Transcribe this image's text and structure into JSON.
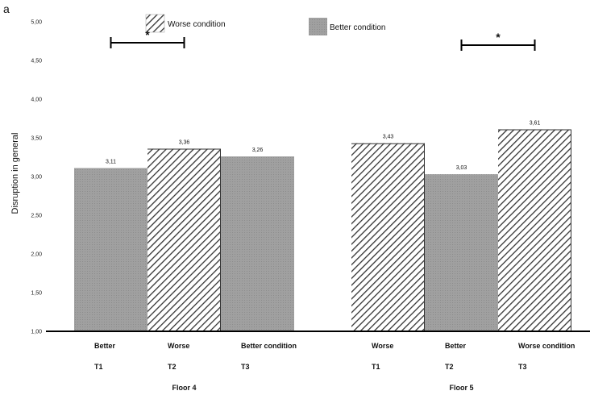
{
  "panel_label": "a",
  "legend": {
    "worse_label": "Worse condition",
    "better_label": "Better condition"
  },
  "colors": {
    "better_fill": "#a0a0a0",
    "hatch_stroke": "#333333",
    "axis": "#000000"
  },
  "chart_data": {
    "type": "bar",
    "title": "",
    "xlabel": "",
    "ylabel": "Disruption in general",
    "ylim": [
      1.0,
      5.0
    ],
    "yticks": [
      "1,00",
      "1,50",
      "2,00",
      "2,50",
      "3,00",
      "3,50",
      "4,00",
      "4,50",
      "5,00"
    ],
    "ytick_values": [
      1.0,
      1.5,
      2.0,
      2.5,
      3.0,
      3.5,
      4.0,
      4.5,
      5.0
    ],
    "grid": false,
    "legend_position": "top",
    "groups": [
      {
        "name": "Floor 4",
        "bars": [
          {
            "condition": "Better",
            "category": "Better",
            "time": "T1",
            "value": 3.11,
            "label": "3,11"
          },
          {
            "condition": "Worse",
            "category": "Worse",
            "time": "T2",
            "value": 3.36,
            "label": "3,36"
          },
          {
            "condition": "Better",
            "category": "Better condition",
            "time": "T3",
            "value": 3.26,
            "label": "3,26"
          }
        ],
        "significance": {
          "from": 0,
          "to": 1,
          "marker": "*"
        }
      },
      {
        "name": "Floor 5",
        "bars": [
          {
            "condition": "Worse",
            "category": "Worse",
            "time": "T1",
            "value": 3.43,
            "label": "3,43"
          },
          {
            "condition": "Better",
            "category": "Better",
            "time": "T2",
            "value": 3.03,
            "label": "3,03"
          },
          {
            "condition": "Worse",
            "category": "Worse condition",
            "time": "T3",
            "value": 3.61,
            "label": "3,61"
          }
        ],
        "significance": {
          "from": 1,
          "to": 2,
          "marker": "*"
        }
      }
    ]
  }
}
